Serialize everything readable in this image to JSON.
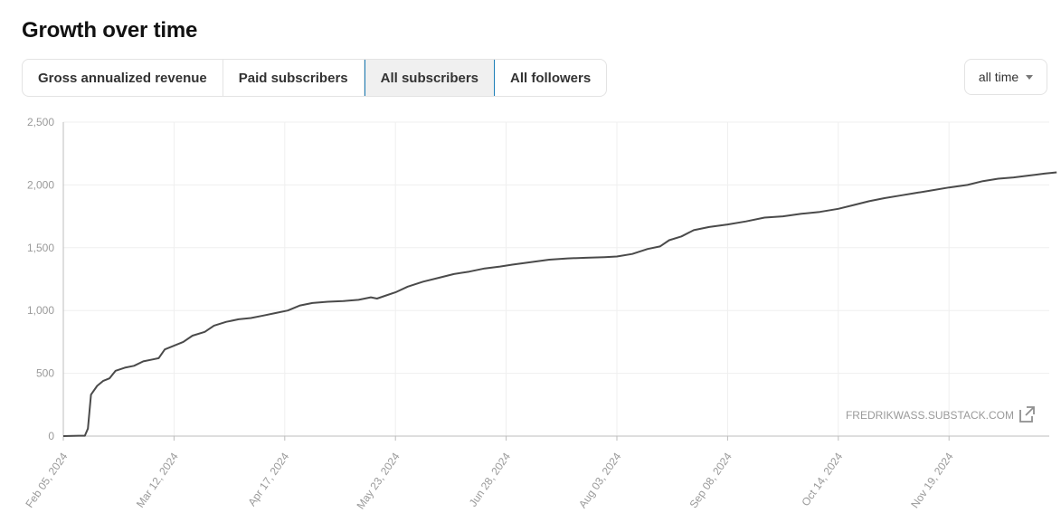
{
  "header": {
    "title": "Growth over time"
  },
  "tabs": [
    {
      "label": "Gross annualized revenue",
      "active": false
    },
    {
      "label": "Paid subscribers",
      "active": false
    },
    {
      "label": "All subscribers",
      "active": true
    },
    {
      "label": "All followers",
      "active": false
    }
  ],
  "range_select": {
    "value": "all time",
    "icon": "caret-down-icon"
  },
  "colors": {
    "line": "#4a4a4a",
    "grid": "#efefef",
    "axis": "#bdbdbd",
    "active_tab_border": "#1d7fb8"
  },
  "source": {
    "label": "FREDRIKWASS.SUBSTACK.COM",
    "icon": "external-link-icon"
  },
  "chart_data": {
    "type": "line",
    "x_axis_type": "date",
    "ylim": [
      0,
      2500
    ],
    "yticks": [
      "0",
      "500",
      "1,000",
      "1,500",
      "2,000",
      "2,500"
    ],
    "ytick_values": [
      0,
      500,
      1000,
      1500,
      2000,
      2500
    ],
    "xticks": [
      "Feb 05, 2024",
      "Mar 12, 2024",
      "Apr 17, 2024",
      "May 23, 2024",
      "Jun 28, 2024",
      "Aug 03, 2024",
      "Sep 08, 2024",
      "Oct 14, 2024",
      "Nov 19, 2024"
    ],
    "xlim": [
      "2024-02-05",
      "2024-12-24"
    ],
    "grid": true,
    "series": [
      {
        "points": [
          [
            "2024-02-05",
            0
          ],
          [
            "2024-02-10",
            3
          ],
          [
            "2024-02-12",
            3
          ],
          [
            "2024-02-13",
            60
          ],
          [
            "2024-02-14",
            330
          ],
          [
            "2024-02-16",
            400
          ],
          [
            "2024-02-18",
            440
          ],
          [
            "2024-02-20",
            460
          ],
          [
            "2024-02-22",
            520
          ],
          [
            "2024-02-25",
            545
          ],
          [
            "2024-02-28",
            560
          ],
          [
            "2024-03-02",
            595
          ],
          [
            "2024-03-05",
            610
          ],
          [
            "2024-03-07",
            620
          ],
          [
            "2024-03-09",
            690
          ],
          [
            "2024-03-12",
            720
          ],
          [
            "2024-03-15",
            750
          ],
          [
            "2024-03-18",
            800
          ],
          [
            "2024-03-22",
            830
          ],
          [
            "2024-03-25",
            880
          ],
          [
            "2024-03-29",
            910
          ],
          [
            "2024-04-02",
            930
          ],
          [
            "2024-04-06",
            940
          ],
          [
            "2024-04-10",
            960
          ],
          [
            "2024-04-14",
            980
          ],
          [
            "2024-04-18",
            1000
          ],
          [
            "2024-04-22",
            1040
          ],
          [
            "2024-04-26",
            1060
          ],
          [
            "2024-05-01",
            1070
          ],
          [
            "2024-05-06",
            1075
          ],
          [
            "2024-05-11",
            1085
          ],
          [
            "2024-05-15",
            1105
          ],
          [
            "2024-05-17",
            1095
          ],
          [
            "2024-05-20",
            1120
          ],
          [
            "2024-05-23",
            1145
          ],
          [
            "2024-05-27",
            1190
          ],
          [
            "2024-06-01",
            1230
          ],
          [
            "2024-06-06",
            1260
          ],
          [
            "2024-06-11",
            1290
          ],
          [
            "2024-06-16",
            1310
          ],
          [
            "2024-06-21",
            1335
          ],
          [
            "2024-06-26",
            1350
          ],
          [
            "2024-06-30",
            1365
          ],
          [
            "2024-07-06",
            1385
          ],
          [
            "2024-07-12",
            1405
          ],
          [
            "2024-07-18",
            1415
          ],
          [
            "2024-07-24",
            1420
          ],
          [
            "2024-07-30",
            1425
          ],
          [
            "2024-08-03",
            1430
          ],
          [
            "2024-08-08",
            1450
          ],
          [
            "2024-08-13",
            1490
          ],
          [
            "2024-08-17",
            1510
          ],
          [
            "2024-08-20",
            1560
          ],
          [
            "2024-08-24",
            1590
          ],
          [
            "2024-08-28",
            1640
          ],
          [
            "2024-09-02",
            1665
          ],
          [
            "2024-09-08",
            1685
          ],
          [
            "2024-09-14",
            1710
          ],
          [
            "2024-09-20",
            1740
          ],
          [
            "2024-09-26",
            1750
          ],
          [
            "2024-10-02",
            1770
          ],
          [
            "2024-10-08",
            1785
          ],
          [
            "2024-10-14",
            1810
          ],
          [
            "2024-10-19",
            1840
          ],
          [
            "2024-10-24",
            1870
          ],
          [
            "2024-10-29",
            1895
          ],
          [
            "2024-11-03",
            1915
          ],
          [
            "2024-11-08",
            1935
          ],
          [
            "2024-11-13",
            1955
          ],
          [
            "2024-11-19",
            1980
          ],
          [
            "2024-11-25",
            2000
          ],
          [
            "2024-11-30",
            2030
          ],
          [
            "2024-12-05",
            2050
          ],
          [
            "2024-12-10",
            2060
          ],
          [
            "2024-12-15",
            2075
          ],
          [
            "2024-12-20",
            2090
          ],
          [
            "2024-12-24",
            2100
          ]
        ]
      }
    ]
  }
}
